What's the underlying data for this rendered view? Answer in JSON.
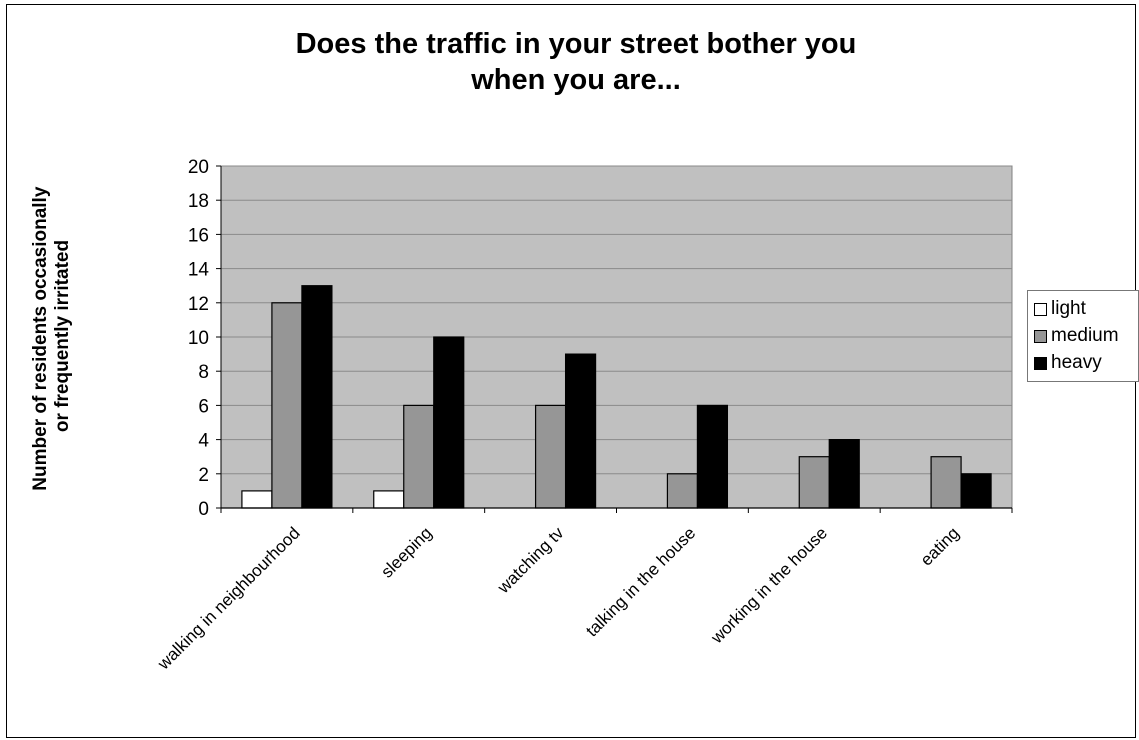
{
  "chart_data": {
    "type": "bar",
    "title": [
      "Does the traffic in your street bother you",
      "when you are..."
    ],
    "ylabel": [
      "Number of residents occasionally",
      "or frequently irritated"
    ],
    "xlabel": "",
    "categories": [
      "walking in neighbourhood",
      "sleeping",
      "watching tv",
      "talking in the house",
      "working in the house",
      "eating"
    ],
    "series": [
      {
        "name": "light",
        "values": [
          1,
          1,
          0,
          0,
          0,
          0
        ],
        "color": "#ffffff"
      },
      {
        "name": "medium",
        "values": [
          12,
          6,
          6,
          2,
          3,
          3
        ],
        "color": "#969696"
      },
      {
        "name": "heavy",
        "values": [
          13,
          10,
          9,
          6,
          4,
          2
        ],
        "color": "#000000"
      }
    ],
    "ylim": [
      0,
      20
    ],
    "yticks": [
      0,
      2,
      4,
      6,
      8,
      10,
      12,
      14,
      16,
      18,
      20
    ],
    "grid": true,
    "plot_background": "#c0c0c0",
    "legend_position": "right"
  }
}
